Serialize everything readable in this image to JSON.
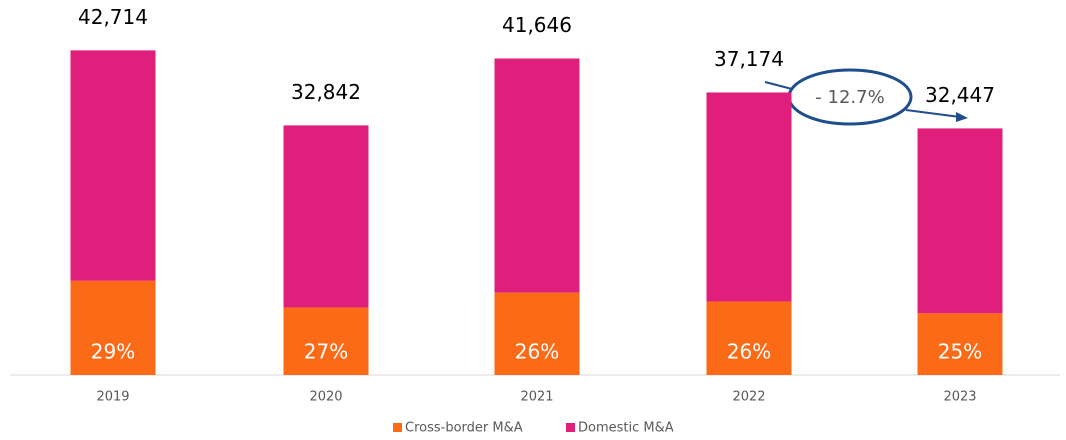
{
  "chart_data": {
    "type": "bar",
    "categories": [
      "2019",
      "2020",
      "2021",
      "2022",
      "2023"
    ],
    "totals": [
      42714,
      32842,
      41646,
      37174,
      32447
    ],
    "total_labels": [
      "42,714",
      "32,842",
      "41,646",
      "37,174",
      "32,447"
    ],
    "series": [
      {
        "name": "Cross-border M&A",
        "color": "#fb6a16",
        "values": [
          29,
          27,
          26,
          26,
          25
        ],
        "value_labels": [
          "29%",
          "27%",
          "26%",
          "26%",
          "25%"
        ]
      },
      {
        "name": "Domestic M&A",
        "color": "#e01e7b"
      }
    ],
    "ylim": [
      0,
      45000
    ],
    "annotation": "- 12.7%"
  }
}
